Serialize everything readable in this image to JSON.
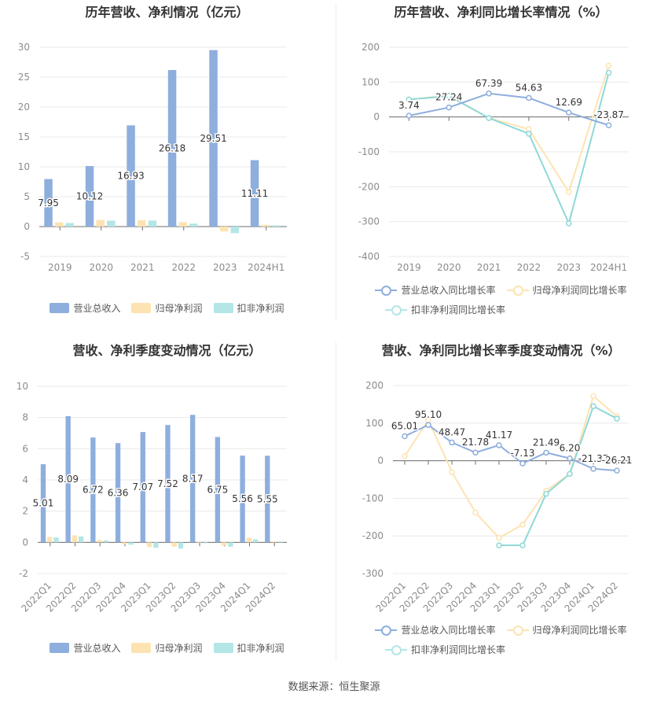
{
  "colors": {
    "revenue": "#8eaedd",
    "net_profit": "#fde3b2",
    "deducted_profit": "#b4e6e6",
    "revenue_line": "#8eaedd",
    "net_line": "#fde3b2",
    "deducted_line": "#8ed8d8"
  },
  "source": "数据来源：恒生聚源",
  "chart_data": [
    {
      "type": "bar",
      "title": "历年营收、净利情况（亿元）",
      "categories": [
        "2019",
        "2020",
        "2021",
        "2022",
        "2023",
        "2024H1"
      ],
      "ylim": [
        -5,
        30
      ],
      "yticks": [
        -5,
        0,
        5,
        10,
        15,
        20,
        25,
        30
      ],
      "series": [
        {
          "name": "营业总收入",
          "values": [
            7.95,
            10.12,
            16.93,
            26.18,
            29.51,
            11.11
          ],
          "labels": [
            "7.95",
            "10.12",
            "16.93",
            "26.18",
            "29.51",
            "11.11"
          ]
        },
        {
          "name": "归母净利润",
          "values": [
            0.7,
            1.1,
            1.05,
            0.75,
            -0.8,
            0.3
          ]
        },
        {
          "name": "扣非净利润",
          "values": [
            0.6,
            1.0,
            1.0,
            0.5,
            -1.1,
            0.2
          ]
        }
      ],
      "grid": true,
      "legend": "bottom"
    },
    {
      "type": "line",
      "title": "历年营收、净利同比增长率情况（%）",
      "categories": [
        "2019",
        "2020",
        "2021",
        "2022",
        "2023",
        "2024H1"
      ],
      "ylim": [
        -400,
        200
      ],
      "yticks": [
        -400,
        -300,
        -200,
        -100,
        0,
        100,
        200
      ],
      "series": [
        {
          "name": "营业总收入同比增长率",
          "values": [
            3.74,
            27.24,
            67.39,
            54.63,
            12.69,
            -23.87
          ],
          "labels": [
            "3.74",
            "27.24",
            "67.39",
            "54.63",
            "12.69",
            "-23.87"
          ]
        },
        {
          "name": "归母净利润同比增长率",
          "values": [
            50,
            62,
            -3,
            -35,
            -215,
            147
          ]
        },
        {
          "name": "扣非净利润同比增长率",
          "values": [
            50,
            60,
            -3,
            -48,
            -305,
            127
          ]
        }
      ],
      "grid": true,
      "legend": "bottom"
    },
    {
      "type": "bar",
      "title": "营收、净利季度变动情况（亿元）",
      "categories": [
        "2022Q1",
        "2022Q2",
        "2022Q3",
        "2022Q4",
        "2023Q1",
        "2023Q2",
        "2023Q3",
        "2023Q4",
        "2024Q1",
        "2024Q2"
      ],
      "ylim": [
        -2,
        10
      ],
      "yticks": [
        -2,
        0,
        2,
        4,
        6,
        8,
        10
      ],
      "series": [
        {
          "name": "营业总收入",
          "values": [
            5.01,
            8.09,
            6.72,
            6.36,
            7.07,
            7.52,
            8.17,
            6.75,
            5.56,
            5.55
          ],
          "labels": [
            "5.01",
            "8.09",
            "6.72",
            "6.36",
            "7.07",
            "7.52",
            "8.17",
            "6.75",
            "5.56",
            "5.55"
          ]
        },
        {
          "name": "归母净利润",
          "values": [
            0.35,
            0.45,
            0.15,
            -0.12,
            -0.3,
            -0.28,
            -0.03,
            -0.2,
            0.3,
            0.05
          ]
        },
        {
          "name": "扣非净利润",
          "values": [
            0.32,
            0.38,
            0.12,
            -0.15,
            -0.35,
            -0.4,
            -0.05,
            -0.28,
            0.2,
            0.03
          ]
        }
      ],
      "grid": true,
      "legend": "bottom"
    },
    {
      "type": "line",
      "title": "营收、净利同比增长率季度变动情况（%）",
      "categories": [
        "2022Q1",
        "2022Q2",
        "2022Q3",
        "2022Q4",
        "2023Q1",
        "2023Q2",
        "2023Q3",
        "2023Q4",
        "2024Q1",
        "2024Q2"
      ],
      "ylim": [
        -300,
        200
      ],
      "yticks": [
        -300,
        -200,
        -100,
        0,
        100,
        200
      ],
      "series": [
        {
          "name": "营业总收入同比增长率",
          "values": [
            65.01,
            95.1,
            48.47,
            21.78,
            41.17,
            -7.13,
            21.49,
            6.2,
            -21.37,
            -26.21
          ],
          "labels": [
            "65.01",
            "95.10",
            "48.47",
            "21.78",
            "41.17",
            "-7.13",
            "21.49",
            "6.20",
            "-21.37",
            "-26.21"
          ]
        },
        {
          "name": "归母净利润同比增长率",
          "values": [
            12,
            108,
            -30,
            -138,
            -205,
            -170,
            -80,
            -35,
            172,
            118
          ]
        },
        {
          "name": "扣非净利润同比增长率",
          "values": [
            null,
            null,
            null,
            null,
            -225,
            -225,
            -88,
            -35,
            145,
            112
          ]
        }
      ],
      "grid": true,
      "legend": "bottom"
    }
  ]
}
